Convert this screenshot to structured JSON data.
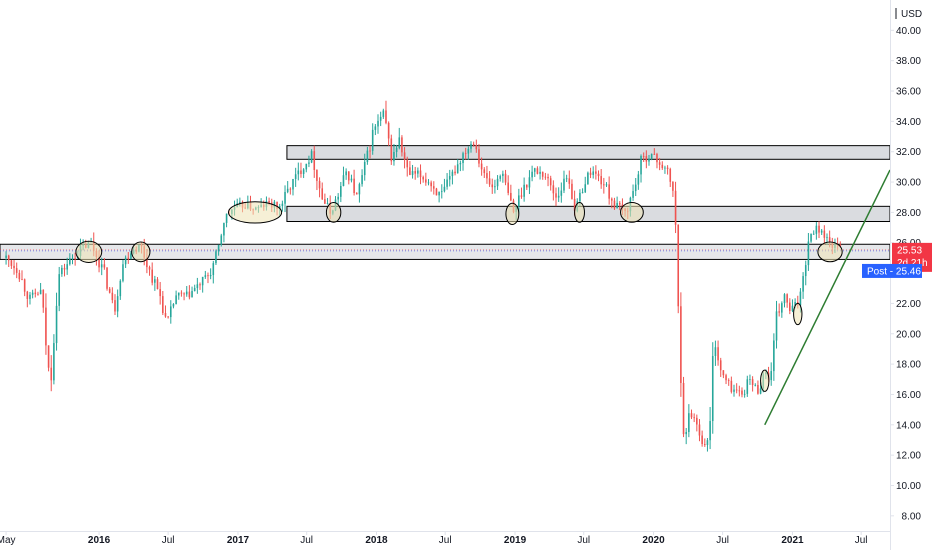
{
  "header": {
    "currency_label": "USD"
  },
  "chart_data": {
    "type": "candlestick",
    "currency": "USD",
    "y_axis": {
      "range": [
        7.0,
        42.0
      ],
      "ticks": [
        8,
        10,
        12,
        14,
        16,
        18,
        20,
        22,
        24,
        26,
        28,
        30,
        32,
        34,
        36,
        38,
        40
      ],
      "tick_labels": [
        "8.00",
        "10.00",
        "12.00",
        "14.00",
        "16.00",
        "18.00",
        "20.00",
        "22.00",
        "24.00",
        "26.00",
        "28.00",
        "30.00",
        "32.00",
        "34.00",
        "36.00",
        "38.00",
        "40.00"
      ]
    },
    "x_axis": {
      "range": [
        "2015-04-15",
        "2021-09-15"
      ],
      "ticks": [
        {
          "date": "2015-05-01",
          "label": "May",
          "bold": false
        },
        {
          "date": "2016-01-01",
          "label": "2016",
          "bold": true
        },
        {
          "date": "2016-07-01",
          "label": "Jul",
          "bold": false
        },
        {
          "date": "2017-01-01",
          "label": "2017",
          "bold": true
        },
        {
          "date": "2017-07-01",
          "label": "Jul",
          "bold": false
        },
        {
          "date": "2018-01-01",
          "label": "2018",
          "bold": true
        },
        {
          "date": "2018-07-01",
          "label": "Jul",
          "bold": false
        },
        {
          "date": "2019-01-01",
          "label": "2019",
          "bold": true
        },
        {
          "date": "2019-07-01",
          "label": "Jul",
          "bold": false
        },
        {
          "date": "2020-01-01",
          "label": "2020",
          "bold": true
        },
        {
          "date": "2020-07-01",
          "label": "Jul",
          "bold": false
        },
        {
          "date": "2021-01-01",
          "label": "2021",
          "bold": true
        },
        {
          "date": "2021-07-01",
          "label": "Jul",
          "bold": false
        }
      ]
    },
    "price_path": [
      [
        "2015-05-01",
        25.0
      ],
      [
        "2015-06-01",
        24.2
      ],
      [
        "2015-07-01",
        22.3
      ],
      [
        "2015-08-01",
        22.8
      ],
      [
        "2015-08-25",
        16.5
      ],
      [
        "2015-09-15",
        23.8
      ],
      [
        "2015-10-15",
        24.8
      ],
      [
        "2015-11-15",
        25.6
      ],
      [
        "2015-12-10",
        26.0
      ],
      [
        "2016-01-15",
        24.0
      ],
      [
        "2016-02-10",
        21.5
      ],
      [
        "2016-03-01",
        24.5
      ],
      [
        "2016-03-25",
        25.5
      ],
      [
        "2016-04-20",
        25.8
      ],
      [
        "2016-05-15",
        24.0
      ],
      [
        "2016-06-10",
        22.5
      ],
      [
        "2016-06-28",
        20.5
      ],
      [
        "2016-07-20",
        22.5
      ],
      [
        "2016-08-20",
        22.5
      ],
      [
        "2016-09-20",
        23.2
      ],
      [
        "2016-10-20",
        24.0
      ],
      [
        "2016-11-10",
        25.5
      ],
      [
        "2016-11-25",
        27.5
      ],
      [
        "2016-12-20",
        28.3
      ],
      [
        "2017-01-20",
        28.5
      ],
      [
        "2017-02-20",
        28.2
      ],
      [
        "2017-03-20",
        28.6
      ],
      [
        "2017-04-20",
        28.3
      ],
      [
        "2017-05-20",
        29.8
      ],
      [
        "2017-06-20",
        31.0
      ],
      [
        "2017-07-15",
        31.8
      ],
      [
        "2017-08-10",
        29.0
      ],
      [
        "2017-09-01",
        28.0
      ],
      [
        "2017-09-20",
        29.0
      ],
      [
        "2017-10-15",
        30.8
      ],
      [
        "2017-11-10",
        29.0
      ],
      [
        "2017-12-01",
        31.0
      ],
      [
        "2017-12-25",
        33.5
      ],
      [
        "2018-01-20",
        34.5
      ],
      [
        "2018-02-10",
        31.5
      ],
      [
        "2018-03-01",
        32.8
      ],
      [
        "2018-03-25",
        30.5
      ],
      [
        "2018-04-20",
        30.5
      ],
      [
        "2018-05-20",
        30.0
      ],
      [
        "2018-06-20",
        29.0
      ],
      [
        "2018-07-20",
        30.5
      ],
      [
        "2018-08-20",
        32.0
      ],
      [
        "2018-09-15",
        32.8
      ],
      [
        "2018-10-10",
        30.5
      ],
      [
        "2018-11-05",
        29.5
      ],
      [
        "2018-11-25",
        30.8
      ],
      [
        "2018-12-10",
        29.5
      ],
      [
        "2018-12-28",
        28.0
      ],
      [
        "2019-01-20",
        29.5
      ],
      [
        "2019-02-20",
        30.8
      ],
      [
        "2019-03-20",
        30.5
      ],
      [
        "2019-04-20",
        29.0
      ],
      [
        "2019-05-20",
        30.5
      ],
      [
        "2019-06-10",
        28.0
      ],
      [
        "2019-06-25",
        29.5
      ],
      [
        "2019-07-20",
        30.8
      ],
      [
        "2019-08-20",
        30.0
      ],
      [
        "2019-09-20",
        28.5
      ],
      [
        "2019-10-20",
        28.0
      ],
      [
        "2019-11-10",
        29.5
      ],
      [
        "2019-12-01",
        31.5
      ],
      [
        "2019-12-25",
        31.8
      ],
      [
        "2020-01-20",
        31.2
      ],
      [
        "2020-02-10",
        30.5
      ],
      [
        "2020-02-25",
        29.0
      ],
      [
        "2020-03-05",
        22.5
      ],
      [
        "2020-03-15",
        16.0
      ],
      [
        "2020-03-23",
        12.5
      ],
      [
        "2020-04-05",
        15.0
      ],
      [
        "2020-04-25",
        14.0
      ],
      [
        "2020-05-15",
        12.5
      ],
      [
        "2020-05-28",
        13.5
      ],
      [
        "2020-06-08",
        20.0
      ],
      [
        "2020-06-25",
        17.5
      ],
      [
        "2020-07-20",
        16.5
      ],
      [
        "2020-08-20",
        16.0
      ],
      [
        "2020-09-10",
        17.0
      ],
      [
        "2020-10-01",
        16.2
      ],
      [
        "2020-10-20",
        17.5
      ],
      [
        "2020-11-05",
        17.0
      ],
      [
        "2020-11-20",
        21.0
      ],
      [
        "2020-12-10",
        22.5
      ],
      [
        "2020-12-25",
        21.5
      ],
      [
        "2021-01-15",
        22.0
      ],
      [
        "2021-01-30",
        24.0
      ],
      [
        "2021-02-15",
        26.5
      ],
      [
        "2021-03-01",
        27.0
      ],
      [
        "2021-03-20",
        26.8
      ],
      [
        "2021-04-05",
        26.0
      ],
      [
        "2021-04-20",
        25.8
      ],
      [
        "2021-05-10",
        25.53
      ]
    ],
    "price_bands": [
      {
        "top": 32.4,
        "bottom": 31.5,
        "from": "2017-05-10",
        "to": "2021-09-15",
        "fill": "#dadce0"
      },
      {
        "top": 28.4,
        "bottom": 27.4,
        "from": "2017-05-10",
        "to": "2021-09-15",
        "fill": "#dadce0"
      },
      {
        "top": 25.9,
        "bottom": 24.9,
        "from": "2015-04-15",
        "to": "2021-09-15",
        "fill": "#e6e7ea"
      }
    ],
    "trend_line": {
      "from": [
        "2020-10-20",
        14.0
      ],
      "to": [
        "2021-09-15",
        30.8
      ],
      "color": "#2e7d32"
    },
    "ellipses": [
      {
        "date": "2015-12-05",
        "price": 25.4,
        "rx_days": 34,
        "ry_price": 0.7
      },
      {
        "date": "2016-04-20",
        "price": 25.4,
        "rx_days": 24,
        "ry_price": 0.65
      },
      {
        "date": "2017-02-15",
        "price": 28.0,
        "rx_days": 70,
        "ry_price": 0.7
      },
      {
        "date": "2017-09-10",
        "price": 28.0,
        "rx_days": 19,
        "ry_price": 0.65
      },
      {
        "date": "2018-12-25",
        "price": 27.9,
        "rx_days": 17,
        "ry_price": 0.7
      },
      {
        "date": "2019-06-20",
        "price": 28.0,
        "rx_days": 13,
        "ry_price": 0.65
      },
      {
        "date": "2019-11-05",
        "price": 28.0,
        "rx_days": 30,
        "ry_price": 0.65
      },
      {
        "date": "2020-10-20",
        "price": 16.9,
        "rx_days": 11,
        "ry_price": 0.7
      },
      {
        "date": "2021-01-15",
        "price": 21.3,
        "rx_days": 11,
        "ry_price": 0.7
      },
      {
        "date": "2021-04-10",
        "price": 25.4,
        "rx_days": 32,
        "ry_price": 0.65
      }
    ],
    "last_price": {
      "value": 25.53,
      "label": "25.53",
      "countdown": "2d 21h",
      "color": "#f23645"
    },
    "post_market": {
      "value": 25.46,
      "label": "Post - 25.46",
      "color": "#2962ff"
    },
    "colors": {
      "up": "#26a69a",
      "down": "#ef5350",
      "axis_line": "#e0e3eb",
      "text": "#131722",
      "ellipse_fill": "#efe3b5",
      "ellipse_stroke": "#000000"
    }
  }
}
